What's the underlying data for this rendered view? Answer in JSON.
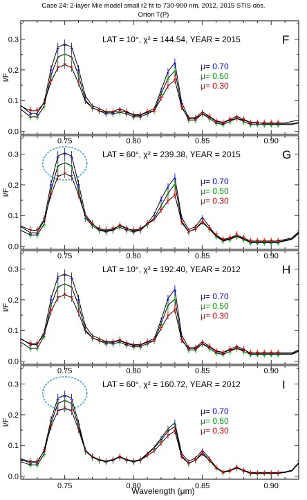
{
  "figure": {
    "title": "Case 24: 2-layer Mie model small r2 fit to 730-900 nm, 2012, 2015 STIS obs.",
    "subtitle": "Orton T(P)",
    "xlabel": "Wavelength (μm)",
    "ylabel": "I/F",
    "colors": {
      "mu_070": "#0000ff",
      "mu_050": "#00a000",
      "mu_030": "#e00000",
      "model": "#000000",
      "highlight": "#3aa0e0"
    }
  },
  "chart_data": [
    {
      "type": "line",
      "panel_letter": "F",
      "info": "LAT = 10°, χ² = 144.54, YEAR = 2015",
      "xlim": [
        0.718,
        0.92
      ],
      "ylim": [
        -0.01,
        0.36
      ],
      "xticks": [
        0.75,
        0.8,
        0.85,
        0.9
      ],
      "xtick_labels": [
        "0.75",
        "0.80",
        "0.85",
        "0.90"
      ],
      "yticks": [
        0.0,
        0.1,
        0.2,
        0.3
      ],
      "ytick_labels": [
        "0.0",
        "0.1",
        "0.2",
        "0.3"
      ],
      "legend": [
        "μ= 0.70",
        "μ= 0.50",
        "μ= 0.30"
      ],
      "legend_position": "right",
      "highlight_circle": false,
      "x": [
        0.718,
        0.725,
        0.73,
        0.735,
        0.74,
        0.745,
        0.75,
        0.755,
        0.76,
        0.765,
        0.77,
        0.775,
        0.78,
        0.785,
        0.79,
        0.795,
        0.8,
        0.805,
        0.81,
        0.815,
        0.82,
        0.825,
        0.83,
        0.835,
        0.84,
        0.845,
        0.85,
        0.855,
        0.86,
        0.865,
        0.87,
        0.875,
        0.88,
        0.885,
        0.89,
        0.895,
        0.9,
        0.905,
        0.91,
        0.915,
        0.92
      ],
      "series": [
        {
          "name": "μ= 0.70",
          "values": [
            0.08,
            0.055,
            0.055,
            0.09,
            0.2,
            0.27,
            0.28,
            0.27,
            0.2,
            0.11,
            0.08,
            0.07,
            0.06,
            0.06,
            0.07,
            0.06,
            0.05,
            0.05,
            0.06,
            0.07,
            0.13,
            0.19,
            0.22,
            0.09,
            0.04,
            0.04,
            0.06,
            0.045,
            0.03,
            0.025,
            0.035,
            0.045,
            0.035,
            0.025,
            0.025,
            0.02,
            0.02,
            0.02,
            0.02,
            0.02,
            0.025
          ]
        },
        {
          "name": "μ= 0.50",
          "values": [
            0.07,
            0.045,
            0.045,
            0.08,
            0.18,
            0.24,
            0.25,
            0.24,
            0.18,
            0.1,
            0.075,
            0.065,
            0.055,
            0.055,
            0.06,
            0.055,
            0.045,
            0.045,
            0.055,
            0.065,
            0.12,
            0.17,
            0.195,
            0.08,
            0.035,
            0.035,
            0.055,
            0.04,
            0.025,
            0.02,
            0.03,
            0.04,
            0.03,
            0.02,
            0.02,
            0.02,
            0.02,
            0.02,
            0.02,
            0.02,
            0.025
          ]
        },
        {
          "name": "μ= 0.30",
          "values": [
            0.085,
            0.07,
            0.07,
            0.095,
            0.165,
            0.21,
            0.22,
            0.21,
            0.16,
            0.1,
            0.08,
            0.07,
            0.065,
            0.065,
            0.07,
            0.065,
            0.055,
            0.055,
            0.065,
            0.07,
            0.11,
            0.15,
            0.17,
            0.08,
            0.045,
            0.045,
            0.06,
            0.05,
            0.035,
            0.03,
            0.04,
            0.045,
            0.04,
            0.03,
            0.03,
            0.03,
            0.03,
            0.03,
            0.03,
            0.035,
            0.04
          ]
        }
      ]
    },
    {
      "type": "line",
      "panel_letter": "G",
      "info": "LAT = 60°, χ² = 239.38, YEAR = 2015",
      "xlim": [
        0.718,
        0.92
      ],
      "ylim": [
        -0.01,
        0.36
      ],
      "xticks": [
        0.75,
        0.8,
        0.85,
        0.9
      ],
      "xtick_labels": [
        "0.75",
        "0.80",
        "0.85",
        "0.90"
      ],
      "yticks": [
        0.0,
        0.1,
        0.2,
        0.3
      ],
      "ytick_labels": [
        "0.0",
        "0.1",
        "0.2",
        "0.3"
      ],
      "legend": [
        "μ= 0.70",
        "μ= 0.50",
        "μ= 0.30"
      ],
      "legend_position": "right",
      "highlight_circle": true,
      "x": [
        0.718,
        0.725,
        0.73,
        0.735,
        0.74,
        0.745,
        0.75,
        0.755,
        0.76,
        0.765,
        0.77,
        0.775,
        0.78,
        0.785,
        0.79,
        0.795,
        0.8,
        0.805,
        0.81,
        0.815,
        0.82,
        0.825,
        0.83,
        0.835,
        0.84,
        0.845,
        0.85,
        0.855,
        0.86,
        0.865,
        0.87,
        0.875,
        0.88,
        0.885,
        0.89,
        0.895,
        0.9,
        0.905,
        0.91,
        0.915,
        0.92
      ],
      "series": [
        {
          "name": "μ= 0.70",
          "values": [
            0.06,
            0.04,
            0.04,
            0.08,
            0.2,
            0.29,
            0.3,
            0.29,
            0.2,
            0.1,
            0.07,
            0.05,
            0.045,
            0.05,
            0.065,
            0.055,
            0.045,
            0.05,
            0.07,
            0.1,
            0.15,
            0.19,
            0.22,
            0.09,
            0.05,
            0.06,
            0.09,
            0.06,
            0.03,
            0.015,
            0.02,
            0.03,
            0.02,
            0.01,
            0.01,
            0.01,
            0.01,
            0.01,
            0.015,
            0.02,
            0.04
          ]
        },
        {
          "name": "μ= 0.50",
          "values": [
            0.05,
            0.035,
            0.035,
            0.07,
            0.18,
            0.26,
            0.27,
            0.26,
            0.18,
            0.09,
            0.065,
            0.05,
            0.045,
            0.05,
            0.06,
            0.05,
            0.045,
            0.05,
            0.07,
            0.09,
            0.13,
            0.17,
            0.2,
            0.08,
            0.045,
            0.055,
            0.08,
            0.055,
            0.03,
            0.015,
            0.02,
            0.03,
            0.02,
            0.01,
            0.01,
            0.01,
            0.01,
            0.01,
            0.015,
            0.02,
            0.04
          ]
        },
        {
          "name": "μ= 0.30",
          "values": [
            0.07,
            0.055,
            0.055,
            0.09,
            0.17,
            0.23,
            0.24,
            0.23,
            0.17,
            0.1,
            0.075,
            0.06,
            0.055,
            0.06,
            0.07,
            0.06,
            0.055,
            0.06,
            0.075,
            0.09,
            0.12,
            0.15,
            0.17,
            0.08,
            0.05,
            0.06,
            0.08,
            0.06,
            0.04,
            0.025,
            0.03,
            0.04,
            0.03,
            0.02,
            0.02,
            0.02,
            0.02,
            0.02,
            0.025,
            0.03,
            0.05
          ]
        }
      ]
    },
    {
      "type": "line",
      "panel_letter": "H",
      "info": "LAT = 10°, χ² = 192.40, YEAR = 2012",
      "xlim": [
        0.718,
        0.92
      ],
      "ylim": [
        -0.01,
        0.36
      ],
      "xticks": [
        0.75,
        0.8,
        0.85,
        0.9
      ],
      "xtick_labels": [
        "0.75",
        "0.80",
        "0.85",
        "0.90"
      ],
      "yticks": [
        0.0,
        0.1,
        0.2,
        0.3
      ],
      "ytick_labels": [
        "0.0",
        "0.1",
        "0.2",
        "0.3"
      ],
      "legend": [
        "μ= 0.70",
        "μ= 0.50",
        "μ= 0.30"
      ],
      "legend_position": "right",
      "highlight_circle": false,
      "x": [
        0.718,
        0.725,
        0.73,
        0.735,
        0.74,
        0.745,
        0.75,
        0.755,
        0.76,
        0.765,
        0.77,
        0.775,
        0.78,
        0.785,
        0.79,
        0.795,
        0.8,
        0.805,
        0.81,
        0.815,
        0.82,
        0.825,
        0.83,
        0.835,
        0.84,
        0.845,
        0.85,
        0.855,
        0.86,
        0.865,
        0.87,
        0.875,
        0.88,
        0.885,
        0.89,
        0.895,
        0.9,
        0.905,
        0.91,
        0.915,
        0.92
      ],
      "series": [
        {
          "name": "μ= 0.70",
          "values": [
            0.07,
            0.05,
            0.05,
            0.09,
            0.2,
            0.27,
            0.28,
            0.27,
            0.2,
            0.11,
            0.08,
            0.07,
            0.06,
            0.06,
            0.065,
            0.055,
            0.05,
            0.05,
            0.06,
            0.07,
            0.13,
            0.2,
            0.23,
            0.08,
            0.04,
            0.04,
            0.06,
            0.045,
            0.03,
            0.025,
            0.035,
            0.045,
            0.035,
            0.02,
            0.02,
            0.02,
            0.02,
            0.02,
            0.02,
            0.02,
            0.03
          ]
        },
        {
          "name": "μ= 0.50",
          "values": [
            0.06,
            0.04,
            0.04,
            0.08,
            0.18,
            0.24,
            0.25,
            0.24,
            0.18,
            0.1,
            0.075,
            0.065,
            0.055,
            0.055,
            0.06,
            0.05,
            0.045,
            0.045,
            0.055,
            0.065,
            0.12,
            0.18,
            0.2,
            0.07,
            0.035,
            0.035,
            0.055,
            0.04,
            0.025,
            0.02,
            0.03,
            0.04,
            0.03,
            0.02,
            0.02,
            0.02,
            0.02,
            0.02,
            0.02,
            0.02,
            0.03
          ]
        },
        {
          "name": "μ= 0.30",
          "values": [
            0.075,
            0.06,
            0.06,
            0.09,
            0.165,
            0.21,
            0.22,
            0.21,
            0.16,
            0.1,
            0.08,
            0.07,
            0.065,
            0.065,
            0.07,
            0.06,
            0.055,
            0.055,
            0.065,
            0.07,
            0.11,
            0.15,
            0.17,
            0.07,
            0.045,
            0.045,
            0.06,
            0.05,
            0.035,
            0.03,
            0.04,
            0.045,
            0.04,
            0.03,
            0.03,
            0.03,
            0.03,
            0.03,
            0.03,
            0.03,
            0.04
          ]
        }
      ]
    },
    {
      "type": "line",
      "panel_letter": "I",
      "info": "LAT = 60°, χ² = 160.72, YEAR = 2012",
      "xlim": [
        0.718,
        0.92
      ],
      "ylim": [
        -0.01,
        0.36
      ],
      "xticks": [
        0.75,
        0.8,
        0.85,
        0.9
      ],
      "xtick_labels": [
        "0.75",
        "0.80",
        "0.85",
        "0.90"
      ],
      "yticks": [
        0.0,
        0.1,
        0.2,
        0.3
      ],
      "ytick_labels": [
        "0.0",
        "0.1",
        "0.2",
        "0.3"
      ],
      "legend": [
        "μ= 0.70",
        "μ= 0.50",
        "μ= 0.30"
      ],
      "legend_position": "right",
      "highlight_circle": true,
      "x": [
        0.718,
        0.725,
        0.73,
        0.735,
        0.74,
        0.745,
        0.75,
        0.755,
        0.76,
        0.765,
        0.77,
        0.775,
        0.78,
        0.785,
        0.79,
        0.795,
        0.8,
        0.805,
        0.81,
        0.815,
        0.82,
        0.825,
        0.83,
        0.835,
        0.84,
        0.845,
        0.85,
        0.855,
        0.86,
        0.865,
        0.87,
        0.875,
        0.88,
        0.885,
        0.89,
        0.895,
        0.9,
        0.905,
        0.91,
        0.915,
        0.92
      ],
      "series": [
        {
          "name": "μ= 0.70",
          "values": [
            0.05,
            0.04,
            0.04,
            0.08,
            0.18,
            0.25,
            0.26,
            0.25,
            0.17,
            0.08,
            0.06,
            0.05,
            0.045,
            0.05,
            0.06,
            0.05,
            0.045,
            0.05,
            0.07,
            0.09,
            0.12,
            0.15,
            0.17,
            0.07,
            0.045,
            0.055,
            0.08,
            0.055,
            0.025,
            0.01,
            0.015,
            0.025,
            0.015,
            0.008,
            0.008,
            0.008,
            0.008,
            0.008,
            0.01,
            0.015,
            0.04
          ]
        },
        {
          "name": "μ= 0.50",
          "values": [
            0.045,
            0.035,
            0.035,
            0.07,
            0.17,
            0.235,
            0.245,
            0.235,
            0.16,
            0.08,
            0.06,
            0.05,
            0.045,
            0.05,
            0.06,
            0.05,
            0.045,
            0.05,
            0.07,
            0.09,
            0.115,
            0.145,
            0.16,
            0.065,
            0.04,
            0.05,
            0.075,
            0.05,
            0.025,
            0.01,
            0.015,
            0.025,
            0.015,
            0.008,
            0.008,
            0.008,
            0.008,
            0.008,
            0.01,
            0.015,
            0.04
          ]
        },
        {
          "name": "μ= 0.30",
          "values": [
            0.06,
            0.05,
            0.05,
            0.085,
            0.165,
            0.215,
            0.225,
            0.215,
            0.155,
            0.085,
            0.065,
            0.055,
            0.05,
            0.055,
            0.065,
            0.055,
            0.05,
            0.055,
            0.07,
            0.085,
            0.11,
            0.135,
            0.15,
            0.065,
            0.045,
            0.055,
            0.075,
            0.055,
            0.03,
            0.015,
            0.02,
            0.03,
            0.02,
            0.012,
            0.012,
            0.012,
            0.012,
            0.012,
            0.015,
            0.02,
            0.045
          ]
        }
      ]
    }
  ]
}
